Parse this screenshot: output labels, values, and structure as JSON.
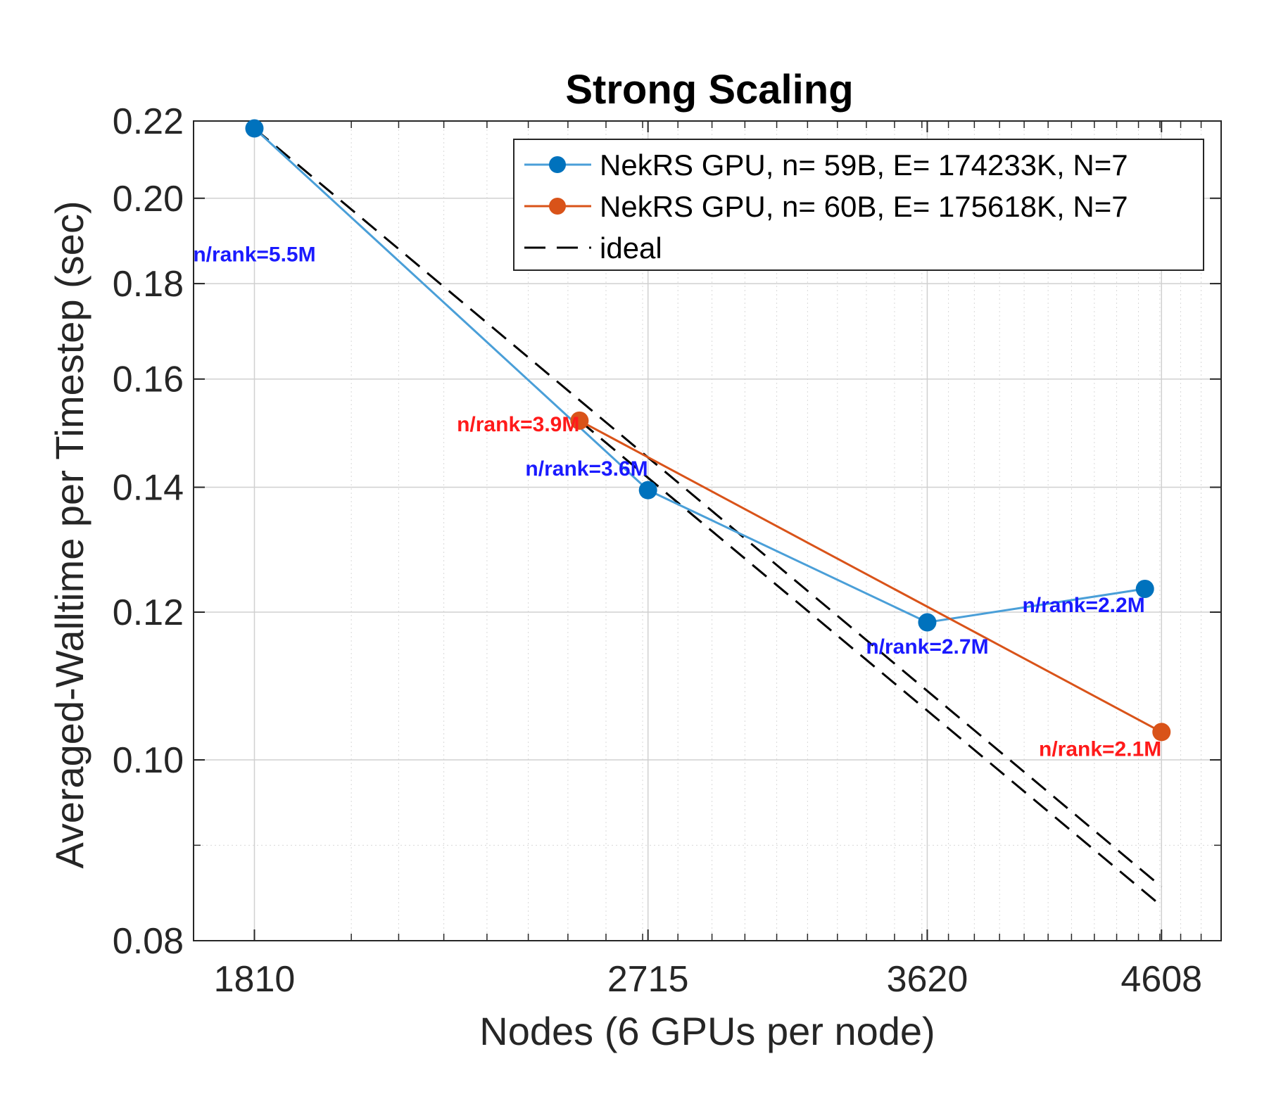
{
  "chart_data": {
    "type": "line",
    "title": "Strong Scaling",
    "xlabel": "Nodes (6 GPUs per node)",
    "ylabel": "Averaged-Walltime  per Timestep (sec)",
    "xscale": "log",
    "yscale": "log",
    "xlim": [
      1700,
      4900
    ],
    "ylim": [
      0.08,
      0.22
    ],
    "xticks": [
      1810,
      2715,
      3620,
      4608
    ],
    "xtick_labels": [
      "1810",
      "2715",
      "3620",
      "4608"
    ],
    "yticks": [
      0.08,
      0.1,
      0.12,
      0.14,
      0.16,
      0.18,
      0.2,
      0.22
    ],
    "ytick_labels": [
      "0.08",
      "0.10",
      "0.12",
      "0.14",
      "0.16",
      "0.18",
      "0.20",
      "0.22"
    ],
    "grid": true,
    "legend_position": "top-right",
    "series": [
      {
        "name": "NekRS GPU, n= 59B, E= 174233K, N=7",
        "color": "#0072BD",
        "line_color": "#4A9FD8",
        "style": "solid-marker",
        "x": [
          1810,
          2715,
          3620,
          4530
        ],
        "y": [
          0.218,
          0.1395,
          0.1185,
          0.1235
        ]
      },
      {
        "name": "NekRS GPU, n= 60B, E= 175618K, N=7",
        "color": "#D95319",
        "line_color": "#D95319",
        "style": "solid-marker",
        "x": [
          2530,
          4608
        ],
        "y": [
          0.152,
          0.1035
        ]
      },
      {
        "name": "ideal",
        "color": "#000000",
        "style": "dashed",
        "x": [
          1810,
          4608
        ],
        "y": [
          0.218,
          0.0855
        ]
      },
      {
        "name": "ideal",
        "color": "#000000",
        "style": "dashed",
        "legend": false,
        "x": [
          2530,
          4608
        ],
        "y": [
          0.152,
          0.0835
        ]
      }
    ],
    "annotations": [
      {
        "text": "n/rank=5.5M",
        "x": 1810,
        "y": 0.185,
        "color": "#1a1aff",
        "align": "middle"
      },
      {
        "text": "n/rank=3.9M",
        "x": 2530,
        "y": 0.15,
        "color": "#ff1a1a",
        "align": "end"
      },
      {
        "text": "n/rank=3.6M",
        "x": 2715,
        "y": 0.142,
        "color": "#1a1aff",
        "align": "end"
      },
      {
        "text": "n/rank=2.7M",
        "x": 3620,
        "y": 0.114,
        "color": "#1a1aff",
        "align": "middle"
      },
      {
        "text": "n/rank=2.2M",
        "x": 4530,
        "y": 0.12,
        "color": "#1a1aff",
        "align": "end"
      },
      {
        "text": "n/rank=2.1M",
        "x": 4608,
        "y": 0.1005,
        "color": "#ff1a1a",
        "align": "end"
      }
    ]
  }
}
